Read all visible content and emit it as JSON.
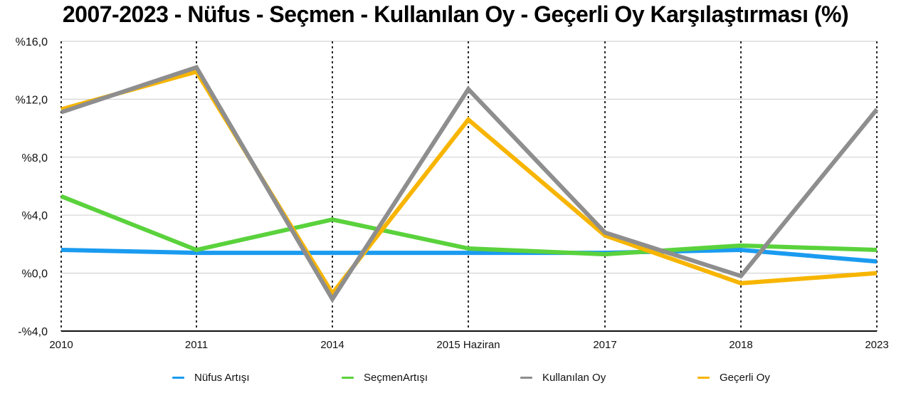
{
  "title": "2007-2023 - Nüfus - Seçmen - Kullanılan Oy - Geçerli Oy Karşılaştırması (%)",
  "chart_data": {
    "type": "line",
    "title": "2007-2023 - Nüfus - Seçmen - Kullanılan Oy - Geçerli Oy Karşılaştırması (%)",
    "xlabel": "",
    "ylabel": "",
    "categories": [
      "2010",
      "2011",
      "2014",
      "2015 Haziran",
      "2017",
      "2018",
      "2023"
    ],
    "ylim": [
      -4,
      16
    ],
    "yticks": [
      -4,
      0,
      4,
      8,
      12,
      16
    ],
    "ytick_labels": [
      "-%4,0",
      "%0,0",
      "%4,0",
      "%8,0",
      "%12,0",
      "%16,0"
    ],
    "grid": {
      "horizontal": true,
      "vertical_dotted": true
    },
    "legend_position": "bottom",
    "series": [
      {
        "name": "Nüfus Artışı",
        "color": "#1a9bf0",
        "values": [
          1.6,
          1.4,
          1.4,
          1.4,
          1.4,
          1.6,
          0.8
        ]
      },
      {
        "name": "SeçmenArtışı",
        "color": "#5ad23c",
        "values": [
          5.3,
          1.6,
          3.7,
          1.7,
          1.3,
          1.9,
          1.6
        ]
      },
      {
        "name": "Kullanılan Oy",
        "color": "#8e8e8e",
        "values": [
          11.1,
          14.2,
          -1.8,
          12.7,
          2.8,
          -0.2,
          11.3
        ]
      },
      {
        "name": "Geçerli Oy",
        "color": "#f7b500",
        "values": [
          11.3,
          13.9,
          -1.4,
          10.6,
          2.6,
          -0.7,
          0.0
        ]
      }
    ]
  },
  "legend": [
    {
      "label": "Nüfus Artışı",
      "color": "#1a9bf0"
    },
    {
      "label": "SeçmenArtışı",
      "color": "#5ad23c"
    },
    {
      "label": "Kullanılan Oy",
      "color": "#8e8e8e"
    },
    {
      "label": "Geçerli Oy",
      "color": "#f7b500"
    }
  ]
}
